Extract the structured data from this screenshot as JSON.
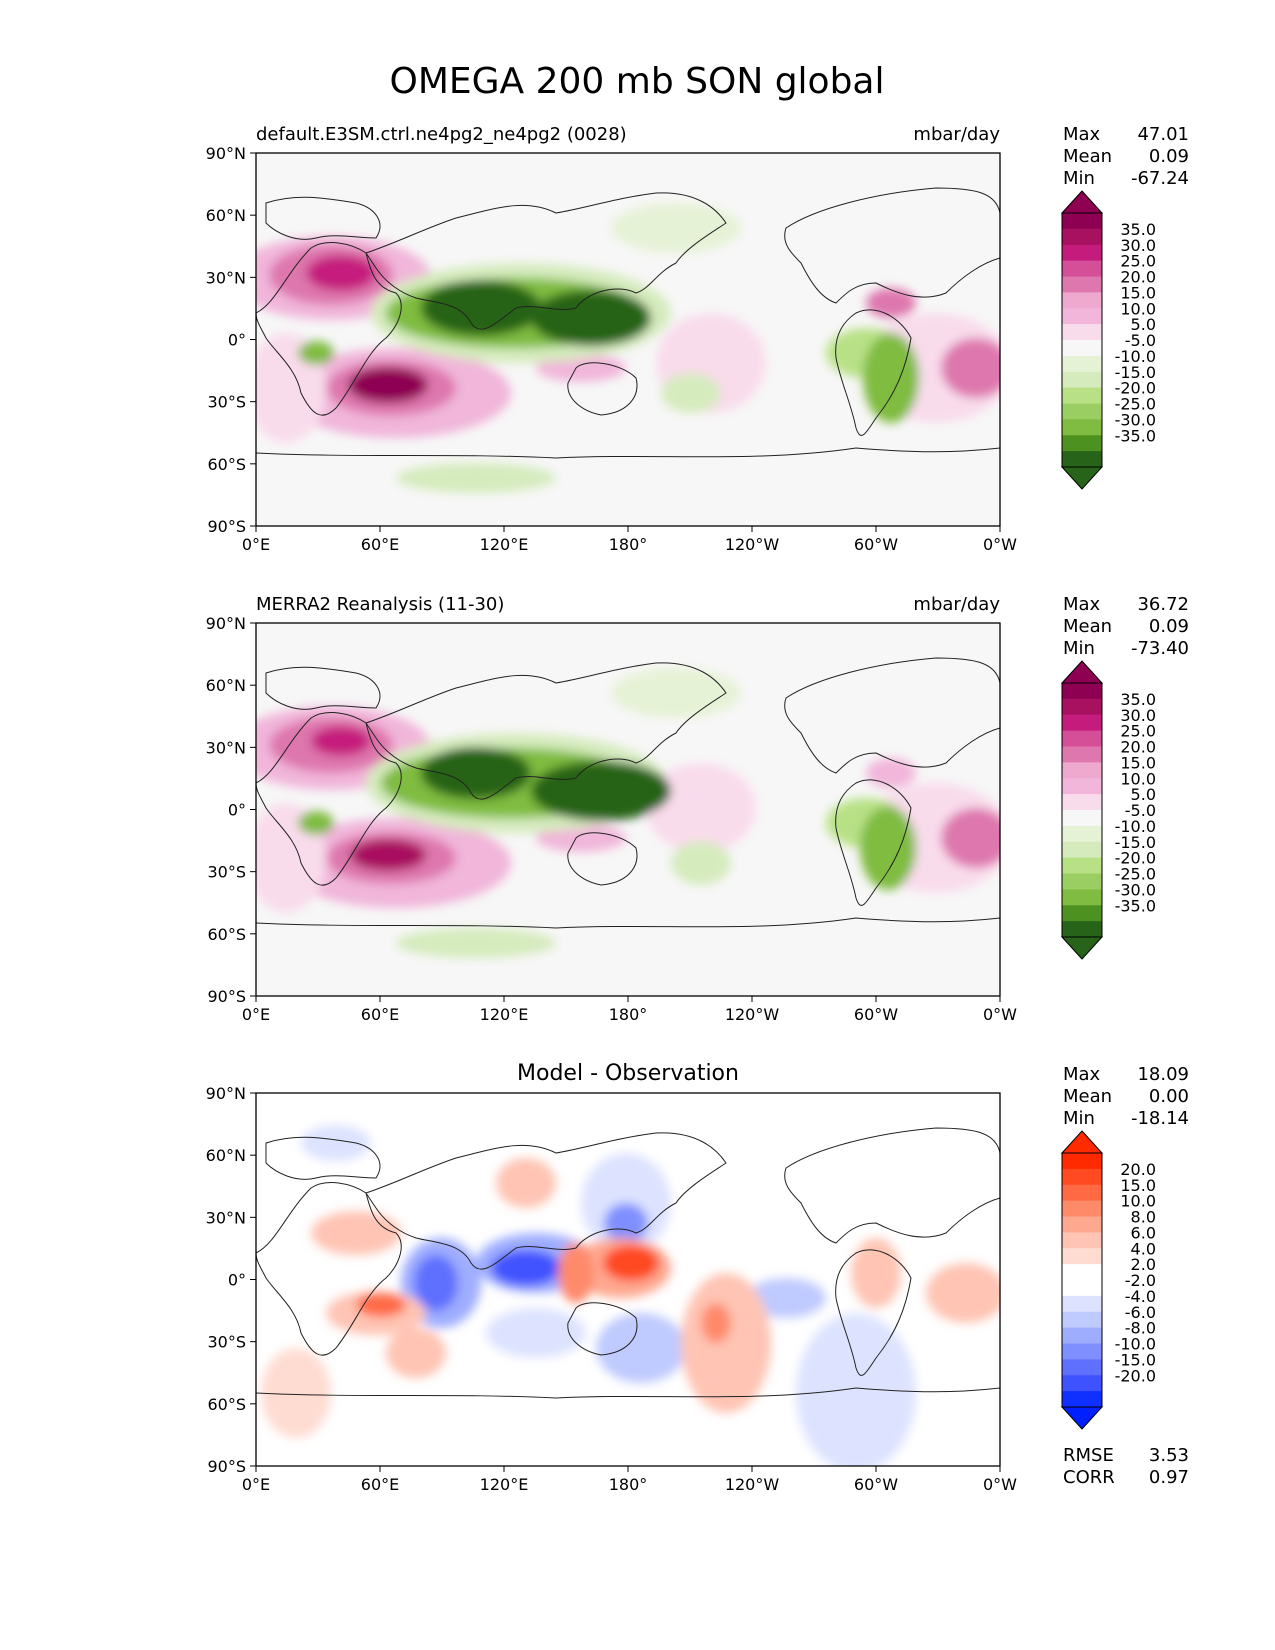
{
  "figure": {
    "title": "OMEGA 200 mb SON global"
  },
  "axes": {
    "lat_ticks": [
      "90°N",
      "60°N",
      "30°N",
      "0°",
      "30°S",
      "60°S",
      "90°S"
    ],
    "lon_ticks": [
      "0°E",
      "60°E",
      "120°E",
      "180°",
      "120°W",
      "60°W",
      "0°W"
    ]
  },
  "panels": [
    {
      "id": "model",
      "left_title": "default.E3SM.ctrl.ne4pg2_ne4pg2 (0028)",
      "center_title": "",
      "units": "mbar/day",
      "stats": [
        {
          "label": "Max",
          "value": "47.01"
        },
        {
          "label": "Mean",
          "value": "0.09"
        },
        {
          "label": "Min",
          "value": "-67.24"
        }
      ],
      "colorbar": {
        "labels": [
          "35.0",
          "30.0",
          "25.0",
          "20.0",
          "15.0",
          "10.0",
          "5.0",
          "-5.0",
          "-10.0",
          "-15.0",
          "-20.0",
          "-25.0",
          "-30.0",
          "-35.0"
        ],
        "colors": [
          "#8e0152",
          "#a8115f",
          "#c51b7d",
          "#d44e98",
          "#de77ae",
          "#efa9cf",
          "#f1b6da",
          "#f9dcec",
          "#f7f7f7",
          "#e6f2d6",
          "#d5ebbd",
          "#b8e186",
          "#9bce62",
          "#7fbc41",
          "#4d9221",
          "#276419"
        ],
        "top_cap": "#8e0152",
        "bottom_cap": "#276419"
      },
      "extra_stats": []
    },
    {
      "id": "obs",
      "left_title": "MERRA2 Reanalysis (11-30)",
      "center_title": "",
      "units": "mbar/day",
      "stats": [
        {
          "label": "Max",
          "value": "36.72"
        },
        {
          "label": "Mean",
          "value": "0.09"
        },
        {
          "label": "Min",
          "value": "-73.40"
        }
      ],
      "colorbar": {
        "labels": [
          "35.0",
          "30.0",
          "25.0",
          "20.0",
          "15.0",
          "10.0",
          "5.0",
          "-5.0",
          "-10.0",
          "-15.0",
          "-20.0",
          "-25.0",
          "-30.0",
          "-35.0"
        ],
        "colors": [
          "#8e0152",
          "#a8115f",
          "#c51b7d",
          "#d44e98",
          "#de77ae",
          "#efa9cf",
          "#f1b6da",
          "#f9dcec",
          "#f7f7f7",
          "#e6f2d6",
          "#d5ebbd",
          "#b8e186",
          "#9bce62",
          "#7fbc41",
          "#4d9221",
          "#276419"
        ],
        "top_cap": "#8e0152",
        "bottom_cap": "#276419"
      },
      "extra_stats": []
    },
    {
      "id": "diff",
      "left_title": "",
      "center_title": "Model - Observation",
      "units": "",
      "stats": [
        {
          "label": "Max",
          "value": "18.09"
        },
        {
          "label": "Mean",
          "value": "0.00"
        },
        {
          "label": "Min",
          "value": "-18.14"
        }
      ],
      "colorbar": {
        "labels": [
          "20.0",
          "15.0",
          "10.0",
          "8.0",
          "6.0",
          "4.0",
          "2.0",
          "-2.0",
          "-4.0",
          "-6.0",
          "-8.0",
          "-10.0",
          "-15.0",
          "-20.0"
        ],
        "colors": [
          "#ff2a00",
          "#ff4a22",
          "#ff6a44",
          "#ff8a6a",
          "#ffa890",
          "#ffc4b4",
          "#ffdcd2",
          "#ffffff",
          "#ffffff",
          "#dde3ff",
          "#bfcaff",
          "#9fadff",
          "#7f8fff",
          "#5f70ff",
          "#3f52ff",
          "#1030ff"
        ],
        "top_cap": "#ff2a00",
        "bottom_cap": "#0020ff"
      },
      "extra_stats": [
        {
          "label": "RMSE",
          "value": "3.53"
        },
        {
          "label": "CORR",
          "value": "0.97"
        }
      ]
    }
  ]
}
